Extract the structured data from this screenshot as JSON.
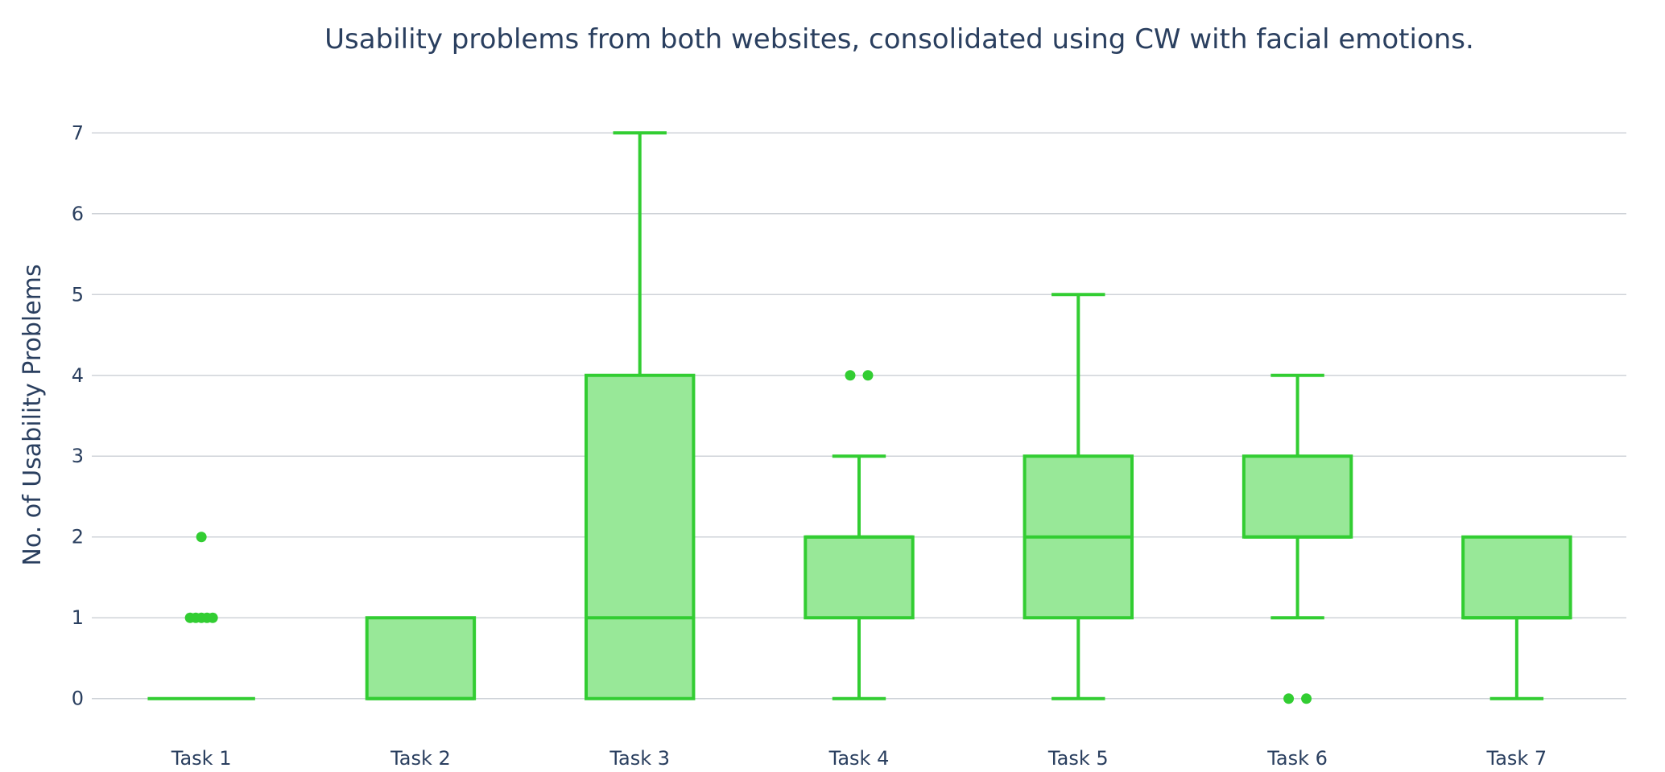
{
  "chart_data": {
    "type": "box",
    "title": "Usability problems from both websites, consolidated using CW with facial emotions.",
    "xlabel": "",
    "ylabel": "No. of Usability Problems",
    "categories": [
      "Task 1",
      "Task 2",
      "Task 3",
      "Task 4",
      "Task 5",
      "Task 6",
      "Task 7"
    ],
    "ylim": [
      -0.55,
      7.55
    ],
    "yticks": [
      0,
      1,
      2,
      3,
      4,
      5,
      6,
      7
    ],
    "grid": true,
    "legend": "none",
    "colors": {
      "line": "#32cd32",
      "fill": "#98e898",
      "grid": "#cfd3d8",
      "text": "#2a3f5f"
    },
    "boxes": [
      {
        "category": "Task 1",
        "lowerfence": 0,
        "q1": 0,
        "median": 0,
        "q3": 0,
        "upperfence": 0,
        "outliers": [
          1,
          1,
          1,
          1,
          1,
          2
        ]
      },
      {
        "category": "Task 2",
        "lowerfence": 0,
        "q1": 0,
        "median": 0,
        "q3": 1,
        "upperfence": 1,
        "outliers": []
      },
      {
        "category": "Task 3",
        "lowerfence": 0,
        "q1": 0,
        "median": 1,
        "q3": 4,
        "upperfence": 7,
        "outliers": []
      },
      {
        "category": "Task 4",
        "lowerfence": 0,
        "q1": 1,
        "median": 2,
        "q3": 2,
        "upperfence": 3,
        "outliers": [
          4,
          4
        ]
      },
      {
        "category": "Task 5",
        "lowerfence": 0,
        "q1": 1,
        "median": 2,
        "q3": 3,
        "upperfence": 5,
        "outliers": []
      },
      {
        "category": "Task 6",
        "lowerfence": 1,
        "q1": 2,
        "median": 2,
        "q3": 3,
        "upperfence": 4,
        "outliers": [
          0,
          0
        ]
      },
      {
        "category": "Task 7",
        "lowerfence": 0,
        "q1": 1,
        "median": 1,
        "q3": 2,
        "upperfence": 2,
        "outliers": []
      }
    ]
  }
}
